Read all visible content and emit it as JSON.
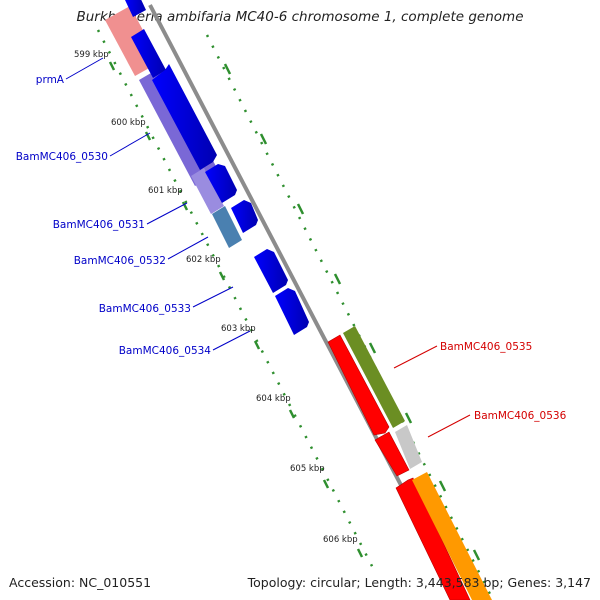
{
  "title": "Burkholderia ambifaria MC40-6 chromosome 1, complete genome",
  "accession": "Accession: NC_010551",
  "topology": "Topology: circular; Length: 3,443,583 bp; Genes: 3,147",
  "colors": {
    "backbone": "#8c8c8c",
    "tick": "#2f8f2f",
    "left_label": "#0000c8",
    "right_label": "#d40000"
  },
  "kbp_labels": [
    "599 kbp",
    "600 kbp",
    "601 kbp",
    "602 kbp",
    "603 kbp",
    "604 kbp",
    "605 kbp",
    "606 kbp"
  ],
  "genes_left": [
    {
      "label": "prmA",
      "color": "#0000c8"
    },
    {
      "label": "BamMC406_0530",
      "color": "#0000c8"
    },
    {
      "label": "BamMC406_0531",
      "color": "#0000c8"
    },
    {
      "label": "BamMC406_0532",
      "color": "#0000c8"
    },
    {
      "label": "BamMC406_0533",
      "color": "#0000c8"
    },
    {
      "label": "BamMC406_0534",
      "color": "#0000c8"
    }
  ],
  "genes_right": [
    {
      "label": "BamMC406_0535",
      "color": "#d40000"
    },
    {
      "label": "BamMC406_0536",
      "color": "#d40000"
    }
  ],
  "features": {
    "cds_forward": "blue",
    "cds_reverse": "red",
    "cog_colors": [
      "#f09090",
      "#8070d8",
      "#9a8ce0",
      "#4a80b0",
      "#6b8e23",
      "#c8c8c8",
      "#ff9900"
    ]
  }
}
